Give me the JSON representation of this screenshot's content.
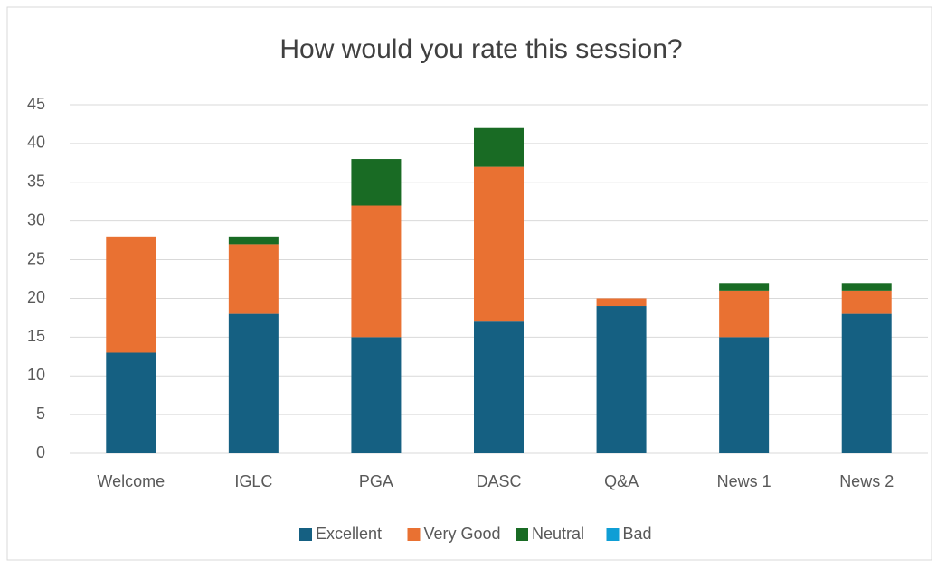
{
  "chart_data": {
    "type": "stacked_bar",
    "title": "How would you rate this session?",
    "categories": [
      "Welcome",
      "IGLC",
      "PGA",
      "DASC",
      "Q&A",
      "News 1",
      "News 2"
    ],
    "series": [
      {
        "name": "Excellent",
        "color": "#156082",
        "values": [
          13,
          18,
          15,
          17,
          19,
          15,
          18
        ]
      },
      {
        "name": "Very Good",
        "color": "#e97132",
        "values": [
          15,
          9,
          17,
          20,
          1,
          6,
          3
        ]
      },
      {
        "name": "Neutral",
        "color": "#196b24",
        "values": [
          0,
          1,
          6,
          5,
          0,
          1,
          1
        ]
      },
      {
        "name": "Bad",
        "color": "#0f9ed5",
        "values": [
          0,
          0,
          0,
          0,
          0,
          0,
          0
        ]
      }
    ],
    "ylim": [
      0,
      45
    ],
    "yticks": [
      0,
      5,
      10,
      15,
      20,
      25,
      30,
      35,
      40,
      45
    ],
    "grid": true,
    "legend": "bottom"
  }
}
